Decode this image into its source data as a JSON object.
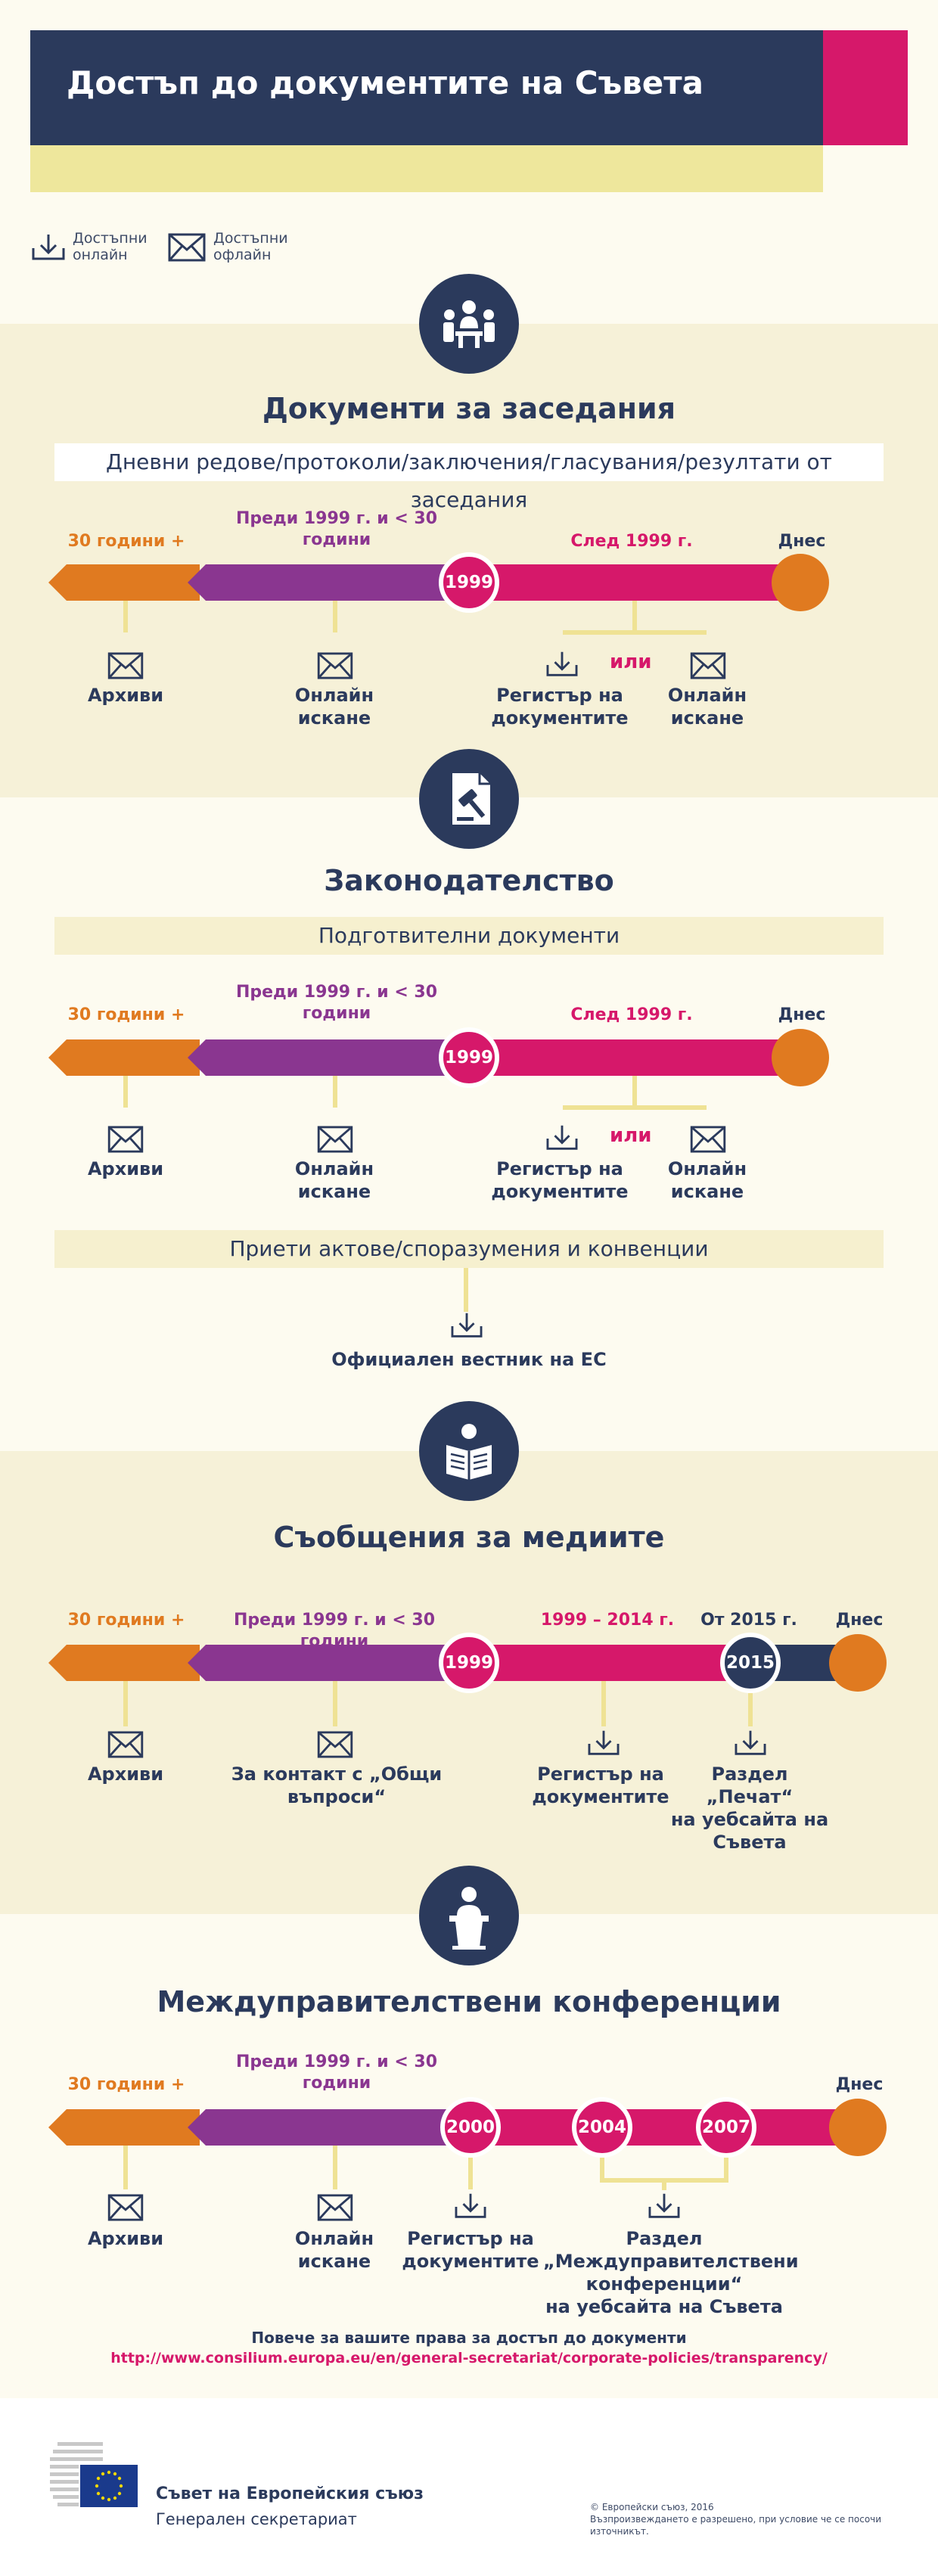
{
  "title": "Достъп до документите на Съвета",
  "legend": {
    "online": [
      "Достъпни",
      "онлайн"
    ],
    "offline": [
      "Достъпни",
      "офлайн"
    ]
  },
  "colors": {
    "navy": "#2b3a5c",
    "pink": "#d6186a",
    "purple": "#8a3690",
    "orange": "#e07a20",
    "yellow": "#eee79c",
    "band": "#f6f1d8"
  },
  "section1": {
    "heading": "Документи за заседания",
    "subtitle": "Дневни редове/протоколи/заключения/гласувания/резултати от заседания",
    "periods": {
      "p30": "30 години +",
      "before1999": [
        "Преди 1999 г. и < 30",
        "години"
      ],
      "after1999": "След 1999 г.",
      "today": "Днес"
    },
    "node": "1999",
    "or": "или",
    "labels": {
      "archives": "Архиви",
      "online_request": [
        "Онлайн",
        "искане"
      ],
      "register": [
        "Регистър на",
        "документите"
      ],
      "online_request2": [
        "Онлайн",
        "искане"
      ]
    }
  },
  "section2": {
    "heading": "Законодателство",
    "subtitle": "Подготвителни документи",
    "periods": {
      "p30": "30 години +",
      "before1999": [
        "Преди 1999 г. и < 30",
        "години"
      ],
      "after1999": "След 1999 г.",
      "today": "Днес"
    },
    "node": "1999",
    "or": "или",
    "labels": {
      "archives": "Архиви",
      "online_request": [
        "Онлайн",
        "искане"
      ],
      "register": [
        "Регистър на",
        "документите"
      ],
      "online_request2": [
        "Онлайн",
        "искане"
      ]
    },
    "subtitle2": "Приети актове/споразумения и конвенции",
    "oj": "Официален вестник на ЕС"
  },
  "section3": {
    "heading": "Съобщения за медиите",
    "periods": {
      "p30": "30 години +",
      "before1999": "Преди 1999 г. и < 30 години",
      "range": "1999 – 2014 г.",
      "from2015": "От 2015 г.",
      "today": "Днес"
    },
    "node1": "1999",
    "node2": "2015",
    "labels": {
      "archives": "Архиви",
      "contact": [
        "За контакт с „Общи",
        "въпроси“"
      ],
      "register": [
        "Регистър на",
        "документите"
      ],
      "press": [
        "Раздел „Печат“",
        "на уебсайта на",
        "Съвета"
      ]
    }
  },
  "section4": {
    "heading": "Междуправителствени конференции",
    "periods": {
      "p30": "30 години +",
      "before1999": [
        "Преди 1999 г. и < 30",
        "години"
      ],
      "today": "Днес"
    },
    "nodes": [
      "2000",
      "2004",
      "2007"
    ],
    "labels": {
      "archives": "Архиви",
      "online_request": [
        "Онлайн",
        "искане"
      ],
      "register": [
        "Регистър на",
        "документите"
      ],
      "igc": [
        "Раздел",
        "„Междуправителствени",
        "конференции“",
        "на уебсайта на Съвета"
      ]
    }
  },
  "more": {
    "text": "Повече за вашите права за достъп до документи",
    "url": "http://www.consilium.europa.eu/en/general-secretariat/corporate-policies/transparency/"
  },
  "footer": {
    "org": "Съвет на Европейския съюз",
    "sub": "Генерален секретариат",
    "copyright": "© Европейски съюз, 2016",
    "note": [
      "Възпроизвеждането е разрешено, при условие че се посочи",
      "източникът."
    ]
  }
}
